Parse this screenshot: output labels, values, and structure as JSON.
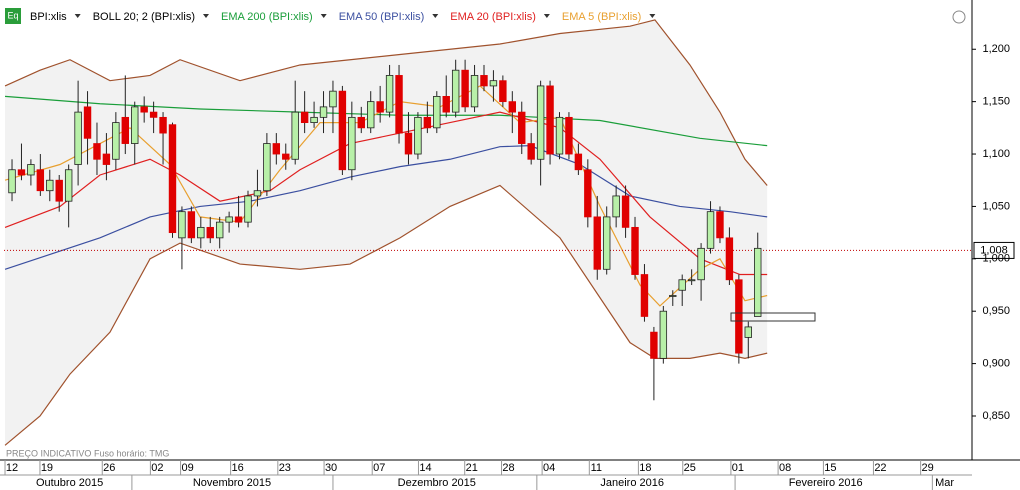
{
  "chart_data": {
    "type": "candlestick",
    "candles": {
      "name": "BPI:xlis",
      "up_color": "#b8f0a8",
      "down_color": "#e00000",
      "ohlc": [
        [
          1.063,
          1.095,
          1.055,
          1.085
        ],
        [
          1.085,
          1.11,
          1.075,
          1.08
        ],
        [
          1.08,
          1.095,
          1.07,
          1.09
        ],
        [
          1.085,
          1.1,
          1.06,
          1.065
        ],
        [
          1.065,
          1.085,
          1.055,
          1.075
        ],
        [
          1.075,
          1.08,
          1.045,
          1.055
        ],
        [
          1.055,
          1.09,
          1.03,
          1.085
        ],
        [
          1.09,
          1.17,
          1.07,
          1.14
        ],
        [
          1.145,
          1.16,
          1.09,
          1.115
        ],
        [
          1.11,
          1.13,
          1.08,
          1.095
        ],
        [
          1.1,
          1.12,
          1.075,
          1.09
        ],
        [
          1.095,
          1.14,
          1.085,
          1.13
        ],
        [
          1.135,
          1.175,
          1.1,
          1.11
        ],
        [
          1.11,
          1.15,
          1.09,
          1.145
        ],
        [
          1.145,
          1.155,
          1.13,
          1.14
        ],
        [
          1.14,
          1.15,
          1.12,
          1.135
        ],
        [
          1.135,
          1.14,
          1.09,
          1.12
        ],
        [
          1.128,
          1.13,
          1.02,
          1.025
        ],
        [
          1.02,
          1.05,
          0.99,
          1.045
        ],
        [
          1.045,
          1.05,
          1.015,
          1.02
        ],
        [
          1.02,
          1.04,
          1.01,
          1.03
        ],
        [
          1.03,
          1.04,
          1.015,
          1.02
        ],
        [
          1.02,
          1.04,
          1.01,
          1.035
        ],
        [
          1.035,
          1.045,
          1.025,
          1.04
        ],
        [
          1.04,
          1.06,
          1.03,
          1.035
        ],
        [
          1.035,
          1.065,
          1.03,
          1.06
        ],
        [
          1.06,
          1.085,
          1.05,
          1.065
        ],
        [
          1.065,
          1.12,
          1.06,
          1.11
        ],
        [
          1.11,
          1.12,
          1.09,
          1.1
        ],
        [
          1.1,
          1.11,
          1.085,
          1.095
        ],
        [
          1.095,
          1.17,
          1.09,
          1.14
        ],
        [
          1.14,
          1.16,
          1.12,
          1.13
        ],
        [
          1.13,
          1.15,
          1.125,
          1.135
        ],
        [
          1.135,
          1.16,
          1.12,
          1.145
        ],
        [
          1.145,
          1.17,
          1.12,
          1.16
        ],
        [
          1.16,
          1.165,
          1.08,
          1.085
        ],
        [
          1.085,
          1.15,
          1.075,
          1.135
        ],
        [
          1.135,
          1.145,
          1.12,
          1.125
        ],
        [
          1.125,
          1.16,
          1.12,
          1.15
        ],
        [
          1.15,
          1.165,
          1.13,
          1.14
        ],
        [
          1.14,
          1.185,
          1.135,
          1.175
        ],
        [
          1.175,
          1.185,
          1.11,
          1.12
        ],
        [
          1.12,
          1.14,
          1.09,
          1.1
        ],
        [
          1.1,
          1.14,
          1.095,
          1.135
        ],
        [
          1.135,
          1.15,
          1.12,
          1.125
        ],
        [
          1.125,
          1.16,
          1.12,
          1.155
        ],
        [
          1.155,
          1.175,
          1.135,
          1.14
        ],
        [
          1.14,
          1.19,
          1.135,
          1.18
        ],
        [
          1.18,
          1.19,
          1.14,
          1.145
        ],
        [
          1.145,
          1.185,
          1.14,
          1.175
        ],
        [
          1.175,
          1.185,
          1.16,
          1.165
        ],
        [
          1.165,
          1.18,
          1.15,
          1.17
        ],
        [
          1.17,
          1.175,
          1.145,
          1.15
        ],
        [
          1.15,
          1.16,
          1.12,
          1.14
        ],
        [
          1.14,
          1.15,
          1.1,
          1.11
        ],
        [
          1.11,
          1.12,
          1.09,
          1.095
        ],
        [
          1.095,
          1.17,
          1.07,
          1.165
        ],
        [
          1.165,
          1.17,
          1.09,
          1.1
        ],
        [
          1.1,
          1.14,
          1.095,
          1.135
        ],
        [
          1.135,
          1.14,
          1.095,
          1.1
        ],
        [
          1.1,
          1.11,
          1.08,
          1.085
        ],
        [
          1.085,
          1.095,
          1.03,
          1.04
        ],
        [
          1.04,
          1.06,
          0.98,
          0.99
        ],
        [
          0.99,
          1.05,
          0.985,
          1.04
        ],
        [
          1.04,
          1.07,
          1.03,
          1.06
        ],
        [
          1.06,
          1.07,
          1.02,
          1.03
        ],
        [
          1.03,
          1.04,
          0.98,
          0.985
        ],
        [
          0.985,
          0.995,
          0.94,
          0.945
        ],
        [
          0.93,
          0.935,
          0.865,
          0.905
        ],
        [
          0.905,
          0.955,
          0.9,
          0.95
        ],
        [
          0.965,
          0.97,
          0.955,
          0.965
        ],
        [
          0.97,
          0.985,
          0.955,
          0.98
        ],
        [
          0.98,
          0.99,
          0.975,
          0.98
        ],
        [
          0.98,
          1.015,
          0.96,
          1.01
        ],
        [
          1.01,
          1.055,
          1.005,
          1.045
        ],
        [
          1.045,
          1.05,
          1.015,
          1.02
        ],
        [
          1.02,
          1.03,
          0.975,
          0.98
        ],
        [
          0.98,
          0.985,
          0.9,
          0.91
        ],
        [
          0.925,
          0.94,
          0.905,
          0.935
        ],
        [
          0.945,
          1.025,
          0.945,
          1.01
        ]
      ]
    },
    "bands": {
      "name": "BOLL 20; 2 (BPI:xlis)",
      "color": "#a0522d",
      "fill": "#f2f2f2",
      "x": [
        -0.74,
        2.97,
        6.14,
        10.38,
        14.62,
        17.8,
        24.15,
        30.51,
        35.81,
        41.1,
        46.4,
        51.69,
        58.05,
        65.47,
        68.11,
        71.82,
        75,
        77.65,
        80
      ],
      "upper": [
        1.165,
        1.18,
        1.19,
        1.17,
        1.175,
        1.19,
        1.17,
        1.185,
        1.19,
        1.195,
        1.2,
        1.205,
        1.215,
        1.222,
        1.228,
        1.185,
        1.14,
        1.095,
        1.07
      ],
      "lower": [
        0.822,
        0.85,
        0.89,
        0.93,
        1.0,
        1.015,
        0.995,
        0.99,
        0.995,
        1.02,
        1.05,
        1.07,
        1.02,
        0.92,
        0.905,
        0.905,
        0.91,
        0.905,
        0.91
      ]
    },
    "series": [
      {
        "name": "EMA 200 (BPI:xlis)",
        "color": "#1a9e3a",
        "x": [
          -0.74,
          9.32,
          19.92,
          30.51,
          41.1,
          51.69,
          62.29,
          72.88,
          80
        ],
        "values": [
          1.155,
          1.148,
          1.143,
          1.14,
          1.137,
          1.137,
          1.132,
          1.115,
          1.108
        ]
      },
      {
        "name": "EMA 50 (BPI:xlis)",
        "color": "#3b4fa0",
        "x": [
          -0.74,
          9.32,
          14.62,
          19.92,
          25.21,
          30.51,
          35.81,
          41.1,
          46.4,
          51.69,
          54.87,
          60.17,
          65.47,
          70.76,
          76.06,
          80
        ],
        "values": [
          0.99,
          1.02,
          1.04,
          1.05,
          1.055,
          1.065,
          1.078,
          1.088,
          1.095,
          1.107,
          1.108,
          1.09,
          1.06,
          1.05,
          1.045,
          1.04
        ]
      },
      {
        "name": "EMA 20 (BPI:xlis)",
        "color": "#e02020",
        "x": [
          -0.74,
          5.08,
          9.32,
          14.62,
          17.8,
          22.03,
          27.33,
          30.51,
          35.81,
          41.1,
          46.4,
          51.69,
          53.81,
          58.05,
          62.29,
          67.58,
          72.88,
          77.12,
          80
        ],
        "values": [
          1.03,
          1.05,
          1.08,
          1.095,
          1.08,
          1.055,
          1.065,
          1.085,
          1.11,
          1.12,
          1.13,
          1.14,
          1.135,
          1.125,
          1.095,
          1.04,
          1.0,
          0.985,
          0.985
        ]
      },
      {
        "name": "EMA 5 (BPI:xlis)",
        "color": "#e8a030",
        "x": [
          -0.74,
          5.08,
          8.26,
          12.5,
          16.74,
          19.92,
          24.15,
          28.39,
          32.63,
          36.86,
          41.1,
          45.34,
          49.58,
          53.81,
          58.05,
          62.29,
          66.53,
          68.64,
          72.88,
          75,
          77.65,
          80
        ],
        "values": [
          1.075,
          1.09,
          1.105,
          1.125,
          1.09,
          1.04,
          1.035,
          1.085,
          1.13,
          1.13,
          1.15,
          1.145,
          1.165,
          1.13,
          1.135,
          1.05,
          0.975,
          0.955,
          0.99,
          1.0,
          0.96,
          0.965
        ]
      }
    ],
    "xlim": [
      -0.85,
      101.7
    ],
    "ylim": [
      0.808,
      1.247
    ],
    "yticks": [
      {
        "value": 0.85,
        "label": "0,850"
      },
      {
        "value": 0.9,
        "label": "0,900"
      },
      {
        "value": 0.95,
        "label": "0,950"
      },
      {
        "value": 1.0,
        "label": "1,000"
      },
      {
        "value": 1.05,
        "label": "1,050"
      },
      {
        "value": 1.1,
        "label": "1,100"
      },
      {
        "value": 1.15,
        "label": "1,150"
      },
      {
        "value": 1.2,
        "label": "1,200"
      }
    ],
    "xticks": [
      {
        "value": 0,
        "label": "12"
      },
      {
        "value": 3.7,
        "label": "19"
      },
      {
        "value": 10.3,
        "label": "26"
      },
      {
        "value": 15.4,
        "label": "02"
      },
      {
        "value": 18.6,
        "label": "09"
      },
      {
        "value": 23.9,
        "label": "16"
      },
      {
        "value": 28.9,
        "label": "23"
      },
      {
        "value": 33.8,
        "label": "30"
      },
      {
        "value": 38.9,
        "label": "07"
      },
      {
        "value": 43.8,
        "label": "14"
      },
      {
        "value": 48.7,
        "label": "21"
      },
      {
        "value": 52.6,
        "label": "28"
      },
      {
        "value": 56.9,
        "label": "04"
      },
      {
        "value": 61.9,
        "label": "11"
      },
      {
        "value": 67.1,
        "label": "18"
      },
      {
        "value": 71.8,
        "label": "25"
      },
      {
        "value": 76.9,
        "label": "01"
      },
      {
        "value": 81.9,
        "label": "08"
      },
      {
        "value": 86.7,
        "label": "15"
      },
      {
        "value": 92,
        "label": "22"
      },
      {
        "value": 97,
        "label": "29"
      }
    ],
    "month_labels": [
      {
        "value": 6.1,
        "label": "Outubro 2015"
      },
      {
        "value": 23.3,
        "label": "Novembro 2015"
      },
      {
        "value": 45.0,
        "label": "Dezembro 2015"
      },
      {
        "value": 65.7,
        "label": "Janeiro 2016"
      },
      {
        "value": 86.2,
        "label": "Fevereiro 2016"
      },
      {
        "value": 98.8,
        "label": "Mar"
      }
    ],
    "month_ticks": [
      12.7,
      34,
      55.6,
      76.6,
      97.5
    ],
    "last_price": {
      "value": 1.008,
      "label": "1,008",
      "color": "#c00000"
    },
    "footer": [
      "PREÇO INDICATIVO",
      "Fuso horário: TMG"
    ],
    "icon_label": "Eq"
  }
}
